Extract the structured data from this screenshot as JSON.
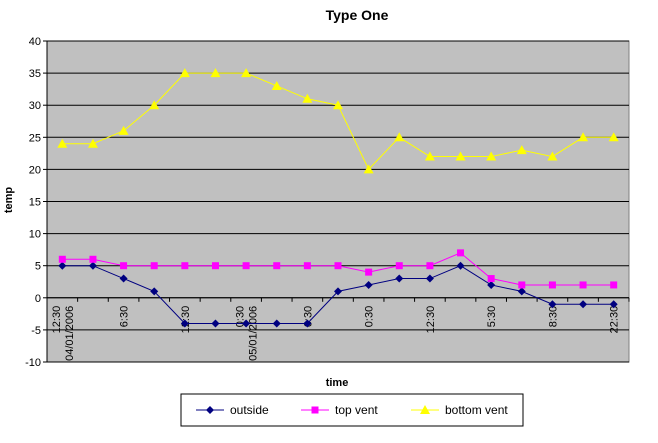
{
  "chart_data": {
    "type": "line",
    "title": "Type One",
    "xlabel": "time",
    "ylabel": "temp",
    "ylim": [
      -10,
      40
    ],
    "y_ticks": [
      -10,
      -5,
      0,
      5,
      10,
      15,
      20,
      25,
      30,
      35,
      40
    ],
    "grid": true,
    "legend_position": "bottom",
    "plot_background": "#c0c0c0",
    "x_labels": [
      {
        "index": 0,
        "lines": [
          "12:30",
          "04/01/2006"
        ]
      },
      {
        "index": 2,
        "lines": [
          "6:30"
        ]
      },
      {
        "index": 4,
        "lines": [
          "12:30"
        ]
      },
      {
        "index": 6,
        "lines": [
          "0:30",
          "05/01/2006"
        ]
      },
      {
        "index": 8,
        "lines": [
          "6:30"
        ]
      },
      {
        "index": 10,
        "lines": [
          "0:30"
        ]
      },
      {
        "index": 12,
        "lines": [
          "12:30"
        ]
      },
      {
        "index": 14,
        "lines": [
          "5:30"
        ]
      },
      {
        "index": 16,
        "lines": [
          "8:30"
        ]
      },
      {
        "index": 18,
        "lines": [
          "22:30"
        ]
      }
    ],
    "point_count": 19,
    "series": [
      {
        "name": "outside",
        "color": "#000080",
        "marker": "diamond",
        "values": [
          5,
          5,
          3,
          1,
          -4,
          -4,
          -4,
          -4,
          -4,
          1,
          2,
          3,
          3,
          5,
          2,
          1,
          -1,
          -1,
          -1
        ]
      },
      {
        "name": "top vent",
        "color": "#ff00ff",
        "marker": "square",
        "values": [
          6,
          6,
          5,
          5,
          5,
          5,
          5,
          5,
          5,
          5,
          4,
          5,
          5,
          7,
          3,
          2,
          2,
          2,
          2
        ]
      },
      {
        "name": "bottom vent",
        "color": "#ffff00",
        "marker": "triangle",
        "values": [
          24,
          24,
          26,
          30,
          35,
          35,
          35,
          33,
          31,
          30,
          20,
          25,
          22,
          22,
          22,
          23,
          22,
          25,
          25
        ]
      }
    ]
  }
}
